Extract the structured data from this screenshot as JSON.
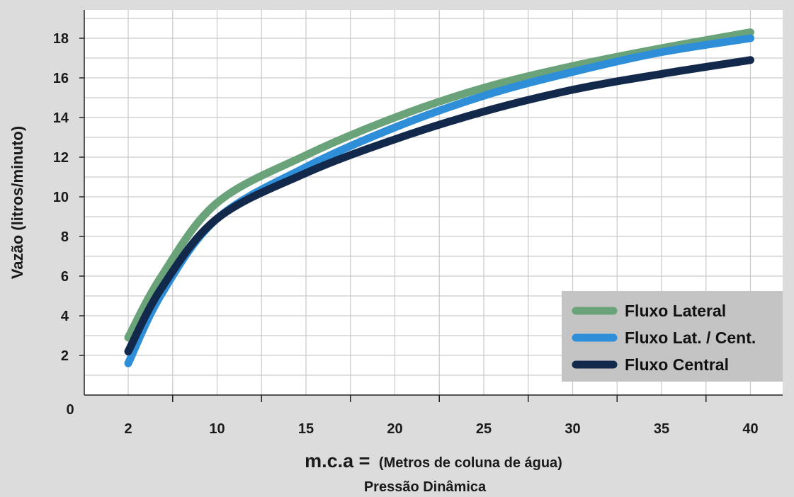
{
  "chart_data": {
    "type": "line",
    "xlabel": {
      "main": "m.c.a =",
      "detail": "(Metros de coluna de água)",
      "sub": "Pressão Dinâmica"
    },
    "ylabel": "Vazão (litros/minuto)",
    "origin_label": "0",
    "xticks": [
      {
        "value": 2,
        "label": "2"
      },
      {
        "value": 10,
        "label": "10"
      },
      {
        "value": 15,
        "label": "15"
      },
      {
        "value": 20,
        "label": "20"
      },
      {
        "value": 25,
        "label": "25"
      },
      {
        "value": 30,
        "label": "30"
      },
      {
        "value": 35,
        "label": "35"
      },
      {
        "value": 40,
        "label": "40"
      }
    ],
    "yticks": [
      2,
      4,
      6,
      8,
      10,
      12,
      14,
      16,
      18
    ],
    "ylim": [
      0,
      19.5
    ],
    "grid": true,
    "legend_position": "bottom-right",
    "series": [
      {
        "name": "Fluxo Lateral",
        "color": "#6aa37a",
        "x": [
          2,
          5,
          10,
          15,
          20,
          25,
          30,
          35,
          40
        ],
        "y": [
          2.9,
          6.0,
          9.7,
          12.1,
          14.0,
          15.5,
          16.6,
          17.5,
          18.3
        ]
      },
      {
        "name": "Fluxo Lat. / Cent.",
        "color": "#2e8fd8",
        "x": [
          2,
          5,
          10,
          15,
          20,
          25,
          30,
          35,
          40
        ],
        "y": [
          1.6,
          5.1,
          8.9,
          11.5,
          13.5,
          15.1,
          16.3,
          17.3,
          18.0
        ]
      },
      {
        "name": "Fluxo Central",
        "color": "#13294b",
        "x": [
          2,
          5,
          10,
          15,
          20,
          25,
          30,
          35,
          40
        ],
        "y": [
          2.2,
          5.4,
          8.9,
          11.2,
          12.9,
          14.3,
          15.4,
          16.2,
          16.9
        ]
      }
    ]
  }
}
